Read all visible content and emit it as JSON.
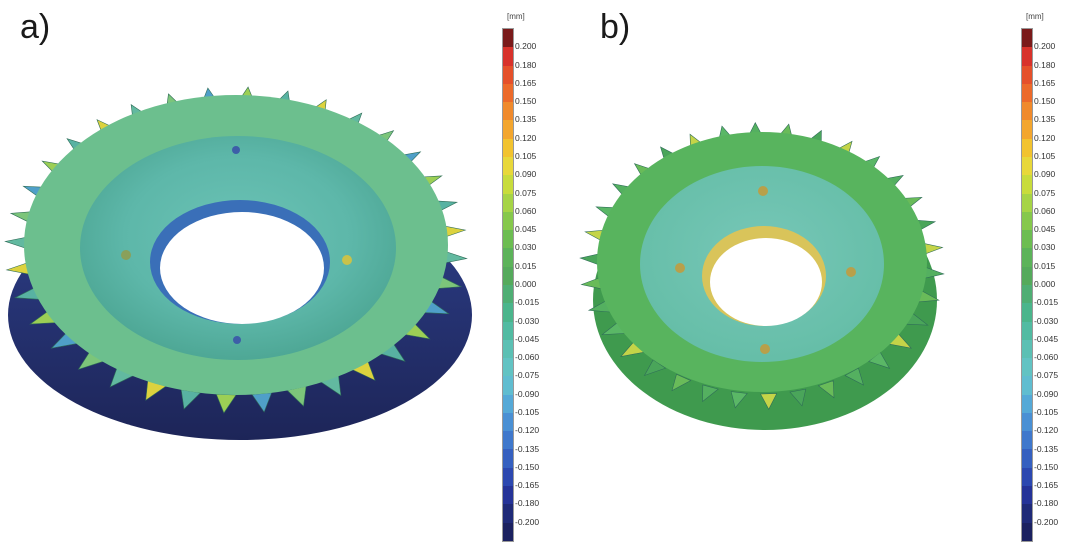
{
  "panels": [
    {
      "label": "a)"
    },
    {
      "label": "b)"
    }
  ],
  "colorbar": {
    "unit": "[mm]",
    "ticks": [
      "0.200",
      "0.180",
      "0.165",
      "0.150",
      "0.135",
      "0.120",
      "0.105",
      "0.090",
      "0.075",
      "0.060",
      "0.045",
      "0.030",
      "0.015",
      "0.000",
      "-0.015",
      "-0.030",
      "-0.045",
      "-0.060",
      "-0.075",
      "-0.090",
      "-0.105",
      "-0.120",
      "-0.135",
      "-0.150",
      "-0.165",
      "-0.180",
      "-0.200"
    ],
    "colors": [
      "#7a1a1a",
      "#d8322b",
      "#e5502a",
      "#ec6a2a",
      "#f08a2c",
      "#f3a62e",
      "#f2c32f",
      "#e8d83a",
      "#c8dc3c",
      "#a6d446",
      "#86c84c",
      "#6cbd52",
      "#5cb35a",
      "#55aa5c",
      "#4fae74",
      "#4bb58c",
      "#52bba2",
      "#5cc0b4",
      "#62c3c3",
      "#60bdd0",
      "#55a9d7",
      "#4a90d4",
      "#3f78cc",
      "#3560c0",
      "#2c48b0",
      "#253398",
      "#1f2a78",
      "#1b2160"
    ]
  },
  "colors": {
    "gear_a_body": "#5bb3a8",
    "gear_b_body": "#4fb05e",
    "background": "#ffffff"
  }
}
